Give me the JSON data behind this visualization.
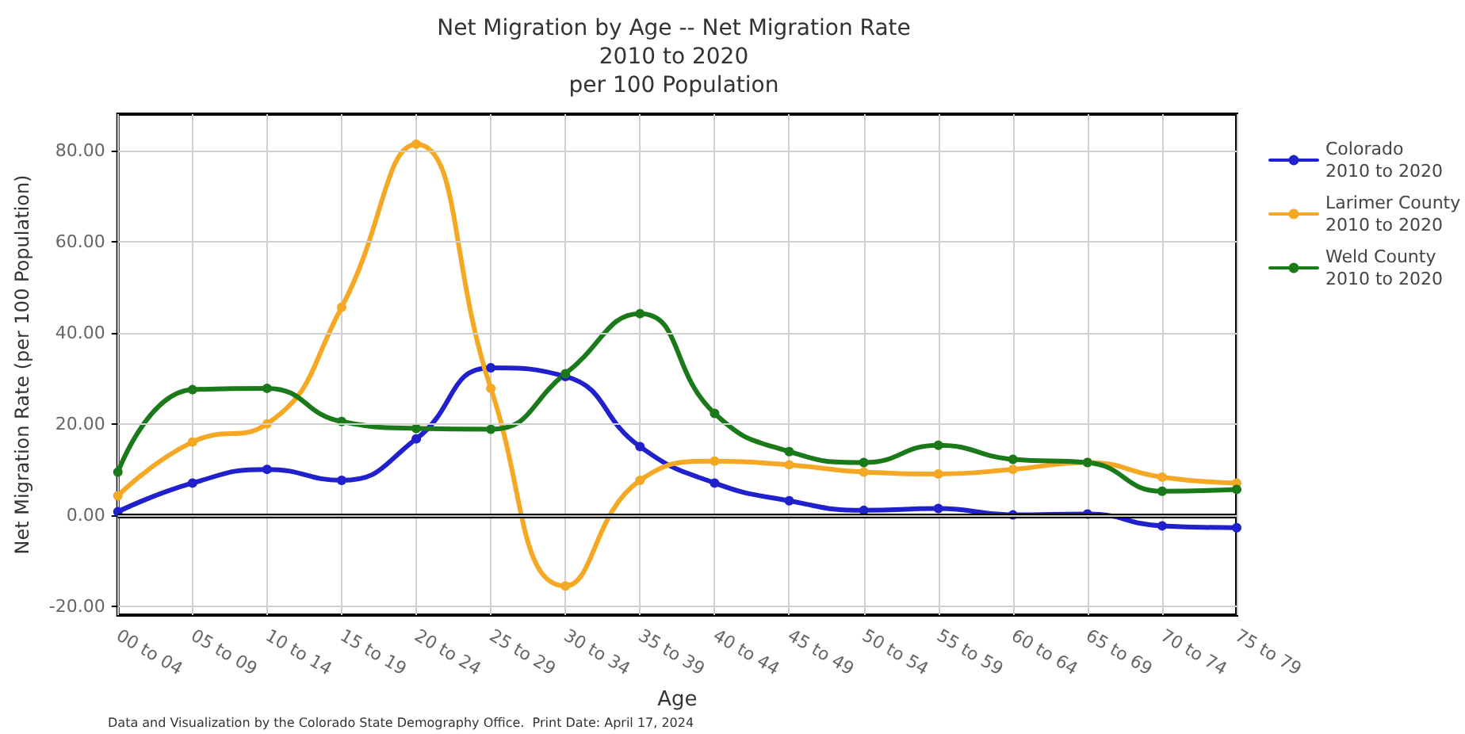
{
  "chart_data": {
    "type": "line",
    "title": "Net Migration by Age -- Net Migration Rate\n2010 to 2020\nper 100 Population",
    "xlabel": "Age",
    "ylabel": "Net Migration Rate (per 100 Population)",
    "categories": [
      "00 to 04",
      "05 to 09",
      "10 to 14",
      "15 to 19",
      "20 to 24",
      "25 to 29",
      "30 to 34",
      "35 to 39",
      "40 to 44",
      "45 to 49",
      "50 to 54",
      "55 to 59",
      "60 to 64",
      "65 to 69",
      "70 to 74",
      "75 to 79"
    ],
    "series": [
      {
        "name": "Colorado\n2010 to 2020",
        "color": "#2020cc",
        "values": [
          0.7,
          7,
          10,
          7.6,
          16.7,
          32.3,
          30.4,
          15,
          7,
          3.1,
          1,
          1.4,
          0,
          0.2,
          -2.4,
          -2.8
        ]
      },
      {
        "name": "Larimer County\n2010 to 2020",
        "color": "#f4a823",
        "values": [
          4.2,
          16,
          20,
          45.6,
          81.4,
          27.8,
          -15.6,
          7.6,
          11.8,
          11,
          9.4,
          9,
          10,
          11.5,
          8.3,
          7
        ]
      },
      {
        "name": "Weld County\n2010 to 2020",
        "color": "#1a7a1a",
        "values": [
          9.4,
          27.5,
          27.8,
          20.5,
          19,
          18.8,
          31,
          44.2,
          22.3,
          13.9,
          11.5,
          15.3,
          12.2,
          11.5,
          5.2,
          5.6
        ]
      }
    ],
    "ylim": [
      -22,
      88
    ],
    "yticks": [
      {
        "value": -20,
        "label": "-20.00"
      },
      {
        "value": 0,
        "label": "0.00"
      },
      {
        "value": 20,
        "label": "20.00"
      },
      {
        "value": 40,
        "label": "40.00"
      },
      {
        "value": 60,
        "label": "60.00"
      },
      {
        "value": 80,
        "label": "80.00"
      }
    ],
    "ref_lines": [
      {
        "axis": "y",
        "value": 0,
        "label": null,
        "color": "#000000"
      }
    ],
    "grid": true,
    "legend": "right",
    "marker": "circle",
    "line_style": "solid",
    "annotations": [
      "Data and Visualization by the Colorado State Demography Office.  Print Date: April 17, 2024"
    ]
  }
}
